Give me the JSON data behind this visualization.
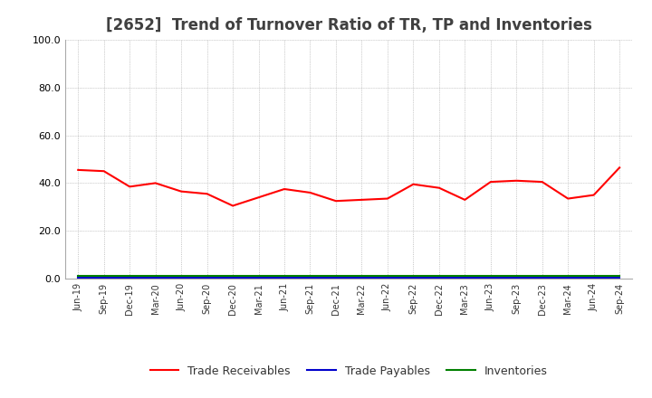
{
  "title": "[2652]  Trend of Turnover Ratio of TR, TP and Inventories",
  "xlabels": [
    "Jun-19",
    "Sep-19",
    "Dec-19",
    "Mar-20",
    "Jun-20",
    "Sep-20",
    "Dec-20",
    "Mar-21",
    "Jun-21",
    "Sep-21",
    "Dec-21",
    "Mar-22",
    "Jun-22",
    "Sep-22",
    "Dec-22",
    "Mar-23",
    "Jun-23",
    "Sep-23",
    "Dec-23",
    "Mar-24",
    "Jun-24",
    "Sep-24"
  ],
  "trade_receivables": [
    45.5,
    45.0,
    38.5,
    40.0,
    36.5,
    35.5,
    30.5,
    34.0,
    37.5,
    36.0,
    32.5,
    33.0,
    33.5,
    39.5,
    38.0,
    33.0,
    40.5,
    41.0,
    40.5,
    33.5,
    35.0,
    46.5
  ],
  "trade_payables": [
    0.5,
    0.5,
    0.5,
    0.5,
    0.5,
    0.5,
    0.5,
    0.5,
    0.5,
    0.5,
    0.5,
    0.5,
    0.5,
    0.5,
    0.5,
    0.5,
    0.5,
    0.5,
    0.5,
    0.5,
    0.5,
    0.5
  ],
  "inventories": [
    1.2,
    1.2,
    1.2,
    1.2,
    1.2,
    1.2,
    1.2,
    1.2,
    1.2,
    1.2,
    1.2,
    1.2,
    1.2,
    1.2,
    1.2,
    1.2,
    1.2,
    1.2,
    1.2,
    1.2,
    1.2,
    1.2
  ],
  "tr_color": "#ff0000",
  "tp_color": "#0000cc",
  "inv_color": "#008000",
  "ylim": [
    0,
    100
  ],
  "yticks": [
    0.0,
    20.0,
    40.0,
    60.0,
    80.0,
    100.0
  ],
  "grid_color": "#b0b0b0",
  "bg_color": "#ffffff",
  "title_fontsize": 12,
  "title_color": "#404040",
  "tick_fontsize": 8,
  "xtick_fontsize": 7,
  "legend_labels": [
    "Trade Receivables",
    "Trade Payables",
    "Inventories"
  ],
  "legend_fontsize": 9
}
